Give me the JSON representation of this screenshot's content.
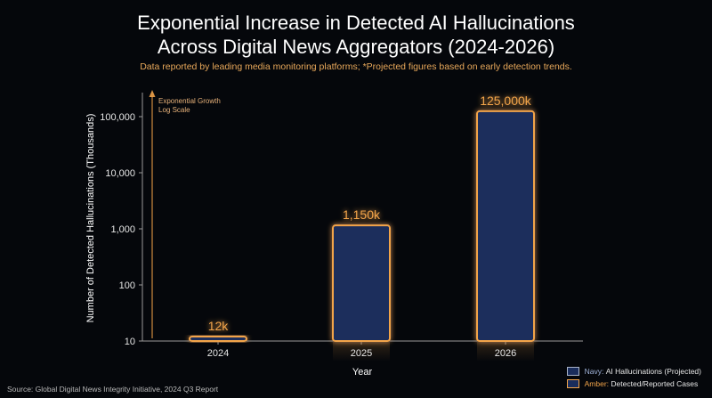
{
  "title_line1": "Exponential Increase in Detected AI Hallucinations",
  "title_line2": "Across Digital News Aggregators (2024-2026)",
  "subtitle": "Data reported by leading media monitoring platforms; *Projected figures based on early detection trends.",
  "annotation": {
    "line1": "Exponential Growth",
    "line2": "Log Scale"
  },
  "source": "Source: Global Digital News Integrity Initiative, 2024 Q3 Report",
  "legend": {
    "navy_key": "Navy:",
    "navy_label": "AI Hallucinations (Projected)",
    "amber_key": "Amber:",
    "amber_label": "Detected/Reported Cases"
  },
  "colors": {
    "navy": "#1a2d5c",
    "amber": "#f2a44a",
    "background": "#05070b"
  },
  "chart_data": {
    "type": "bar",
    "categories": [
      "2024",
      "2025",
      "2026"
    ],
    "values": [
      12,
      1150,
      125000
    ],
    "data_labels": [
      "12k",
      "1,150k",
      "125,000k"
    ],
    "xlabel": "Year",
    "ylabel": "Number of Detected Hallucinations (Thousands)",
    "yscale": "log",
    "ylim": [
      10,
      150000
    ],
    "yticks": [
      10,
      100,
      1000,
      10000,
      100000
    ],
    "ytick_labels": [
      "10",
      "100",
      "1,000",
      "10,000",
      "100,000"
    ],
    "grid": false,
    "legend_position": "bottom-right"
  }
}
